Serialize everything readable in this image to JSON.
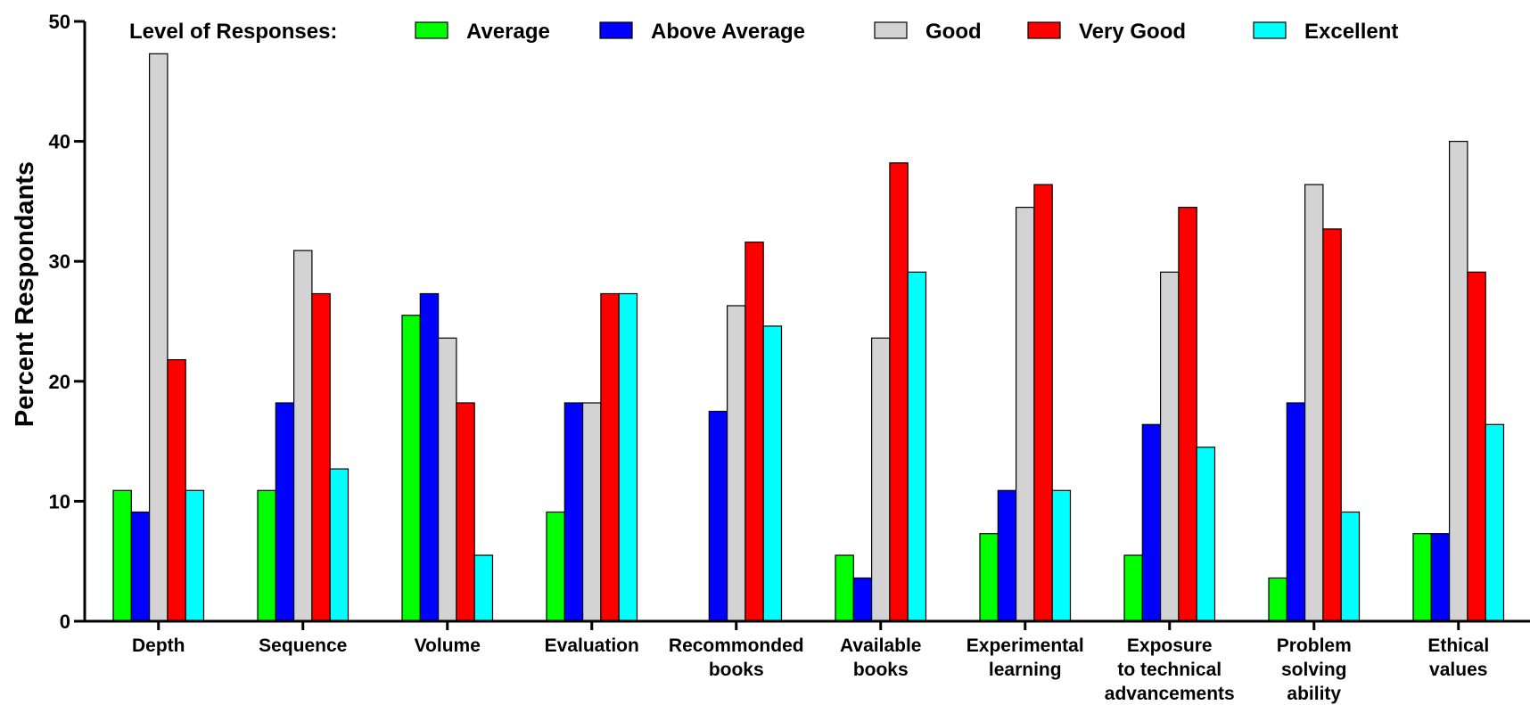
{
  "chart_data": {
    "type": "bar",
    "ylabel": "Percent Respondants",
    "ylim": [
      0,
      50
    ],
    "yticks": [
      "0",
      "10",
      "20",
      "30",
      "40",
      "50"
    ],
    "legend_title": "Level of Responses:",
    "legend_position": "top",
    "grid": false,
    "categories": [
      [
        "Depth"
      ],
      [
        "Sequence"
      ],
      [
        "Volume"
      ],
      [
        "Evaluation"
      ],
      [
        "Recommonded",
        "books"
      ],
      [
        "Available",
        "books"
      ],
      [
        "Experimental",
        "learning"
      ],
      [
        "Exposure",
        "to technical",
        "advancements"
      ],
      [
        "Problem",
        "solving",
        "ability"
      ],
      [
        "Ethical",
        "values"
      ]
    ],
    "series": [
      {
        "name": "Average",
        "color": "#00ff00",
        "values": [
          10.9,
          10.9,
          25.5,
          9.1,
          0,
          5.5,
          7.3,
          5.5,
          3.6,
          7.3
        ]
      },
      {
        "name": "Above Average",
        "color": "#0000ff",
        "values": [
          9.1,
          18.2,
          27.3,
          18.2,
          17.5,
          3.6,
          10.9,
          16.4,
          18.2,
          7.3
        ]
      },
      {
        "name": "Good",
        "color": "#d3d3d3",
        "values": [
          47.3,
          30.9,
          23.6,
          18.2,
          26.3,
          23.6,
          34.5,
          29.1,
          36.4,
          40.0
        ]
      },
      {
        "name": "Very Good",
        "color": "#ff0000",
        "values": [
          21.8,
          27.3,
          18.2,
          27.3,
          31.6,
          38.2,
          36.4,
          34.5,
          32.7,
          29.1
        ]
      },
      {
        "name": "Excellent",
        "color": "#00ffff",
        "values": [
          10.9,
          12.7,
          5.5,
          27.3,
          24.6,
          29.1,
          10.9,
          14.5,
          9.1,
          16.4
        ]
      }
    ]
  }
}
